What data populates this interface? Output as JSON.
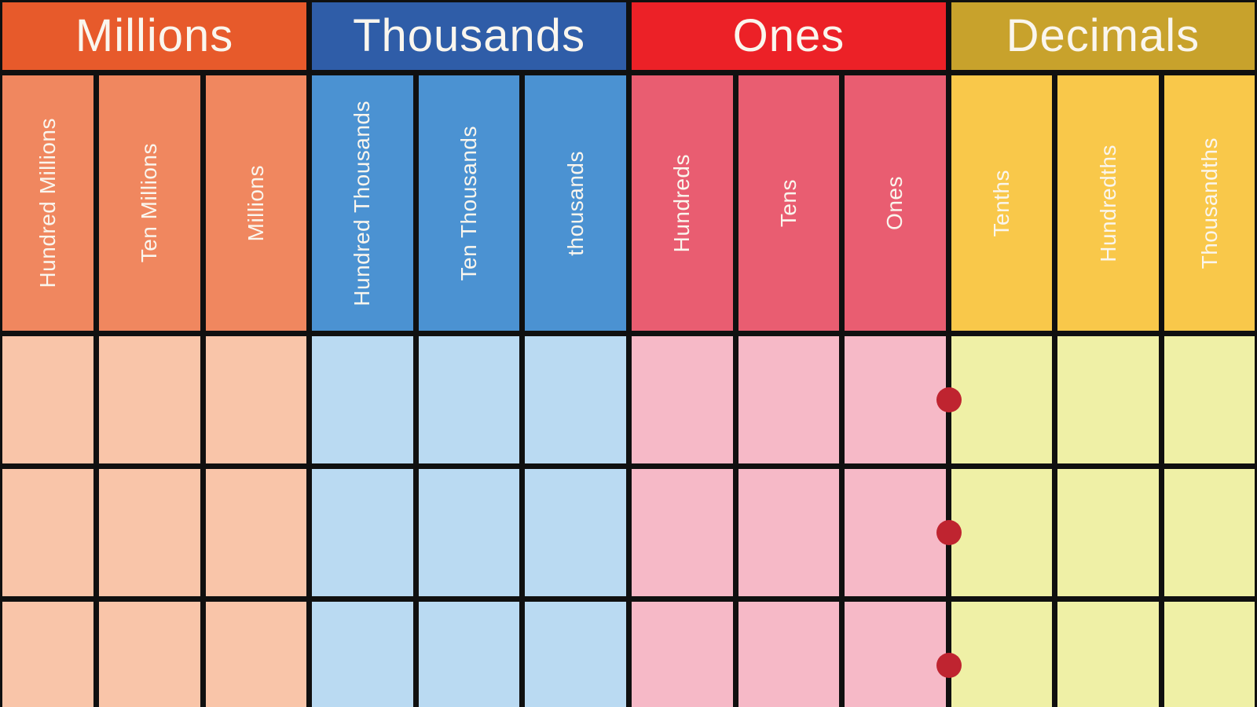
{
  "grid_line_color": "#101010",
  "label_text_color": "#FAF6EE",
  "decimal_point_color": "#BF2430",
  "body_rows": 3,
  "sections": [
    {
      "label": "Millions",
      "colors": {
        "header": "#E75A2B",
        "sub": "#F0875F",
        "cell": "#F9C5A9"
      },
      "columns": [
        "Hundred Millions",
        "Ten Millions",
        "Millions"
      ]
    },
    {
      "label": "Thousands",
      "colors": {
        "header": "#2F5DA8",
        "sub": "#4B92D2",
        "cell": "#BADAF2"
      },
      "columns": [
        "Hundred Thousands",
        "Ten Thousands",
        "thousands"
      ]
    },
    {
      "label": "Ones",
      "colors": {
        "header": "#EC2127",
        "sub": "#E95D71",
        "cell": "#F6B9C7"
      },
      "columns": [
        "Hundreds",
        "Tens",
        "Ones"
      ]
    },
    {
      "label": "Decimals",
      "colors": {
        "header": "#C8A22C",
        "sub": "#F9C84A",
        "cell": "#EFF0A6"
      },
      "columns": [
        "Tenths",
        "Hundredths",
        "Thousandths"
      ]
    }
  ]
}
